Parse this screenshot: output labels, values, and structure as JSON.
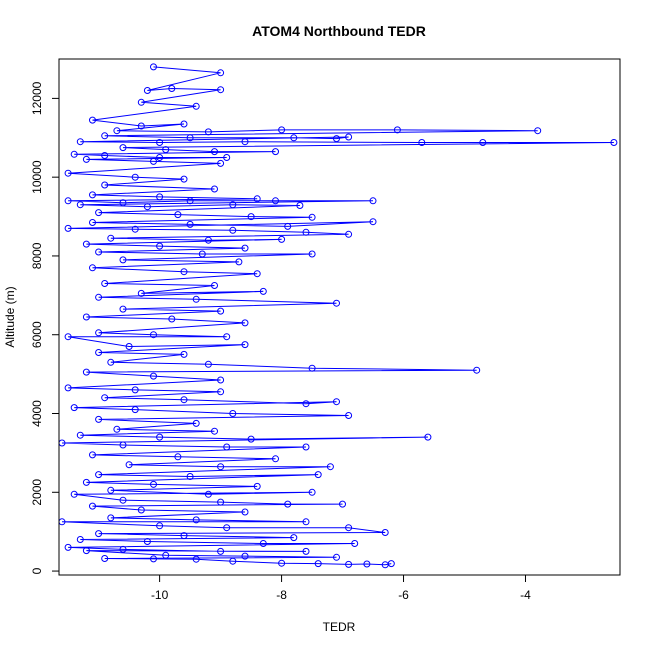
{
  "chart_data": {
    "type": "line",
    "title": "ATOM4 Northbound TEDR",
    "xlabel": "TEDR",
    "ylabel": "Altitude (m)",
    "xlim": [
      -11.65,
      -2.45
    ],
    "ylim": [
      -100,
      13000
    ],
    "x_ticks": [
      -10,
      -8,
      -6,
      -4
    ],
    "y_ticks": [
      0,
      2000,
      4000,
      6000,
      8000,
      10000,
      12000
    ],
    "y_tick_labels_rotated": true,
    "grid": false,
    "legend": "none",
    "series": [
      {
        "line_and_point_style": "points joined by lines, open circles",
        "color": "#0000ff",
        "points": [
          [
            -10.1,
            12800
          ],
          [
            -9.0,
            12650
          ],
          [
            -10.2,
            12200
          ],
          [
            -9.8,
            12250
          ],
          [
            -9.0,
            12220
          ],
          [
            -10.3,
            11900
          ],
          [
            -9.4,
            11800
          ],
          [
            -11.1,
            11450
          ],
          [
            -10.3,
            11300
          ],
          [
            -9.6,
            11350
          ],
          [
            -10.7,
            11180
          ],
          [
            -9.2,
            11150
          ],
          [
            -8.0,
            11200
          ],
          [
            -6.1,
            11200
          ],
          [
            -3.8,
            11180
          ],
          [
            -10.9,
            11050
          ],
          [
            -9.5,
            11000
          ],
          [
            -7.8,
            11000
          ],
          [
            -7.1,
            10980
          ],
          [
            -6.9,
            11020
          ],
          [
            -11.3,
            10900
          ],
          [
            -10.0,
            10880
          ],
          [
            -8.6,
            10900
          ],
          [
            -5.7,
            10880
          ],
          [
            -4.7,
            10880
          ],
          [
            -2.55,
            10880
          ],
          [
            -10.6,
            10750
          ],
          [
            -9.9,
            10700
          ],
          [
            -9.1,
            10650
          ],
          [
            -8.1,
            10650
          ],
          [
            -11.4,
            10580
          ],
          [
            -10.9,
            10550
          ],
          [
            -10.0,
            10500
          ],
          [
            -8.9,
            10500
          ],
          [
            -11.2,
            10450
          ],
          [
            -10.1,
            10400
          ],
          [
            -9.0,
            10350
          ],
          [
            -11.5,
            10100
          ],
          [
            -10.4,
            10000
          ],
          [
            -9.6,
            9950
          ],
          [
            -10.9,
            9800
          ],
          [
            -9.1,
            9700
          ],
          [
            -11.1,
            9550
          ],
          [
            -10.0,
            9500
          ],
          [
            -8.4,
            9450
          ],
          [
            -11.5,
            9400
          ],
          [
            -10.6,
            9350
          ],
          [
            -9.5,
            9400
          ],
          [
            -8.1,
            9400
          ],
          [
            -6.5,
            9400
          ],
          [
            -11.3,
            9300
          ],
          [
            -10.2,
            9250
          ],
          [
            -8.8,
            9300
          ],
          [
            -7.7,
            9280
          ],
          [
            -11.0,
            9100
          ],
          [
            -9.7,
            9050
          ],
          [
            -8.5,
            9000
          ],
          [
            -7.5,
            8980
          ],
          [
            -11.1,
            8850
          ],
          [
            -9.5,
            8800
          ],
          [
            -7.9,
            8750
          ],
          [
            -6.5,
            8870
          ],
          [
            -11.5,
            8700
          ],
          [
            -10.4,
            8680
          ],
          [
            -8.8,
            8650
          ],
          [
            -7.6,
            8600
          ],
          [
            -6.9,
            8550
          ],
          [
            -10.8,
            8450
          ],
          [
            -9.2,
            8400
          ],
          [
            -8.0,
            8420
          ],
          [
            -11.2,
            8300
          ],
          [
            -10.0,
            8250
          ],
          [
            -8.6,
            8200
          ],
          [
            -11.0,
            8100
          ],
          [
            -9.3,
            8050
          ],
          [
            -7.5,
            8050
          ],
          [
            -10.6,
            7900
          ],
          [
            -8.7,
            7850
          ],
          [
            -11.1,
            7700
          ],
          [
            -9.6,
            7600
          ],
          [
            -8.4,
            7550
          ],
          [
            -10.9,
            7300
          ],
          [
            -9.1,
            7250
          ],
          [
            -10.3,
            7050
          ],
          [
            -8.3,
            7100
          ],
          [
            -11.0,
            6950
          ],
          [
            -9.4,
            6900
          ],
          [
            -7.1,
            6800
          ],
          [
            -10.6,
            6650
          ],
          [
            -9.0,
            6600
          ],
          [
            -11.2,
            6450
          ],
          [
            -9.8,
            6400
          ],
          [
            -8.6,
            6300
          ],
          [
            -11.0,
            6050
          ],
          [
            -10.1,
            6000
          ],
          [
            -8.9,
            5950
          ],
          [
            -11.5,
            5950
          ],
          [
            -10.5,
            5700
          ],
          [
            -8.6,
            5750
          ],
          [
            -11.0,
            5550
          ],
          [
            -9.6,
            5500
          ],
          [
            -10.8,
            5300
          ],
          [
            -9.2,
            5250
          ],
          [
            -7.5,
            5150
          ],
          [
            -4.8,
            5100
          ],
          [
            -11.2,
            5050
          ],
          [
            -10.1,
            4950
          ],
          [
            -9.0,
            4850
          ],
          [
            -11.5,
            4650
          ],
          [
            -10.4,
            4600
          ],
          [
            -9.0,
            4550
          ],
          [
            -10.9,
            4400
          ],
          [
            -9.6,
            4350
          ],
          [
            -7.6,
            4250
          ],
          [
            -7.1,
            4300
          ],
          [
            -11.4,
            4150
          ],
          [
            -10.4,
            4100
          ],
          [
            -8.8,
            4000
          ],
          [
            -6.9,
            3950
          ],
          [
            -11.0,
            3850
          ],
          [
            -9.4,
            3750
          ],
          [
            -10.7,
            3600
          ],
          [
            -9.1,
            3550
          ],
          [
            -11.3,
            3450
          ],
          [
            -10.0,
            3400
          ],
          [
            -8.5,
            3350
          ],
          [
            -5.6,
            3400
          ],
          [
            -11.6,
            3250
          ],
          [
            -10.6,
            3200
          ],
          [
            -8.9,
            3150
          ],
          [
            -7.6,
            3150
          ],
          [
            -11.1,
            2950
          ],
          [
            -9.7,
            2900
          ],
          [
            -8.1,
            2850
          ],
          [
            -10.5,
            2700
          ],
          [
            -9.0,
            2650
          ],
          [
            -7.2,
            2650
          ],
          [
            -11.0,
            2450
          ],
          [
            -9.5,
            2400
          ],
          [
            -7.4,
            2450
          ],
          [
            -11.2,
            2250
          ],
          [
            -10.1,
            2200
          ],
          [
            -8.4,
            2150
          ],
          [
            -10.8,
            2050
          ],
          [
            -9.2,
            1950
          ],
          [
            -7.5,
            2000
          ],
          [
            -11.4,
            1950
          ],
          [
            -10.6,
            1800
          ],
          [
            -9.0,
            1750
          ],
          [
            -7.9,
            1700
          ],
          [
            -7.0,
            1700
          ],
          [
            -11.1,
            1650
          ],
          [
            -10.3,
            1550
          ],
          [
            -8.6,
            1500
          ],
          [
            -10.8,
            1350
          ],
          [
            -9.4,
            1300
          ],
          [
            -7.6,
            1250
          ],
          [
            -11.6,
            1250
          ],
          [
            -10.0,
            1150
          ],
          [
            -8.9,
            1100
          ],
          [
            -6.9,
            1100
          ],
          [
            -6.3,
            980
          ],
          [
            -11.0,
            950
          ],
          [
            -9.6,
            900
          ],
          [
            -7.8,
            850
          ],
          [
            -11.3,
            800
          ],
          [
            -10.2,
            750
          ],
          [
            -8.3,
            700
          ],
          [
            -6.8,
            700
          ],
          [
            -11.5,
            600
          ],
          [
            -10.6,
            550
          ],
          [
            -9.0,
            500
          ],
          [
            -7.6,
            500
          ],
          [
            -11.2,
            520
          ],
          [
            -9.9,
            400
          ],
          [
            -8.6,
            380
          ],
          [
            -7.1,
            350
          ],
          [
            -10.9,
            320
          ],
          [
            -10.1,
            310
          ],
          [
            -9.4,
            300
          ],
          [
            -8.8,
            250
          ],
          [
            -8.0,
            200
          ],
          [
            -7.4,
            190
          ],
          [
            -6.9,
            170
          ],
          [
            -6.6,
            180
          ],
          [
            -6.3,
            160
          ],
          [
            -6.2,
            190
          ]
        ]
      }
    ]
  }
}
